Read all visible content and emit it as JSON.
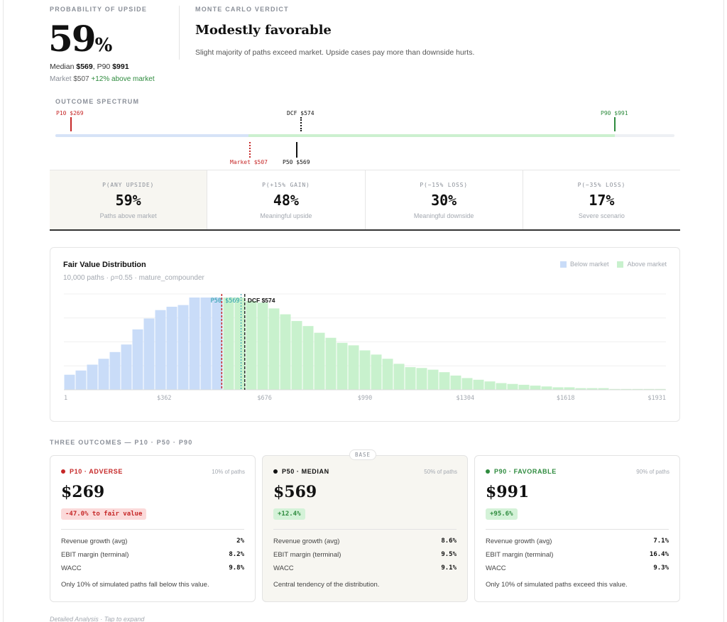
{
  "probability": {
    "eyebrow": "PROBABILITY OF UPSIDE",
    "value": "59",
    "unit": "%",
    "median_label": "Median",
    "median_value": "$569",
    "p90_label": "P90",
    "p90_value": "$991",
    "market_label": "Market",
    "market_value": "$507",
    "market_delta": "+12% above market"
  },
  "verdict": {
    "eyebrow": "MONTE CARLO VERDICT",
    "title": "Modestly favorable",
    "description": "Slight majority of paths exceed market. Upside cases pay more than downside hurts."
  },
  "spectrum": {
    "eyebrow": "OUTCOME SPECTRUM",
    "p10_label": "P10 $269",
    "dcf_label": "DCF $574",
    "p90_label": "P90 $991",
    "market_label": "Market $507",
    "p50_label": "P50 $569"
  },
  "stats": [
    {
      "label": "P(ANY UPSIDE)",
      "value": "59%",
      "sub": "Paths above market"
    },
    {
      "label": "P(+15% GAIN)",
      "value": "48%",
      "sub": "Meaningful upside"
    },
    {
      "label": "P(−15% LOSS)",
      "value": "30%",
      "sub": "Meaningful downside"
    },
    {
      "label": "P(−35% LOSS)",
      "value": "17%",
      "sub": "Severe scenario"
    }
  ],
  "chart": {
    "title": "Fair Value Distribution",
    "subtitle": "10,000 paths · ρ=0.55 · mature_compounder",
    "legend_below": "Below market",
    "legend_above": "Above market",
    "p50_marker": "P50 $569",
    "dcf_marker": "DCF $574"
  },
  "chart_data": {
    "type": "bar",
    "title": "Fair Value Distribution",
    "x_ticks": [
      "1",
      "$362",
      "$676",
      "$990",
      "$1304",
      "$1618",
      "$1931"
    ],
    "x_range": [
      1,
      1931
    ],
    "market_value": 507,
    "p50_value": 569,
    "dcf_value": 574,
    "bin_width": 36.4,
    "bin_start": 1,
    "values": [
      18,
      23,
      30,
      37,
      45,
      54,
      72,
      85,
      95,
      99,
      101,
      110,
      110,
      110,
      110,
      110,
      106,
      104,
      97,
      90,
      82,
      76,
      68,
      62,
      56,
      53,
      47,
      42,
      37,
      31,
      27,
      26,
      24,
      21,
      17,
      14,
      12,
      10,
      8,
      7,
      6,
      5,
      4,
      3,
      3,
      2,
      2,
      2,
      1,
      1,
      1,
      1,
      1
    ],
    "series": [
      {
        "name": "Below market",
        "color": "#c9dcf8"
      },
      {
        "name": "Above market",
        "color": "#c8f1cd"
      }
    ]
  },
  "outcomes": {
    "eyebrow": "THREE OUTCOMES — P10 · P50 · P90",
    "base_chip": "BASE",
    "cards": [
      {
        "tag": "P10 · ADVERSE",
        "share": "10% of paths",
        "price": "$269",
        "badge": "-47.0% to fair value",
        "rows": [
          {
            "label": "Revenue growth (avg)",
            "value": "2%"
          },
          {
            "label": "EBIT margin (terminal)",
            "value": "8.2%"
          },
          {
            "label": "WACC",
            "value": "9.8%"
          }
        ],
        "note": "Only 10% of simulated paths fall below this value."
      },
      {
        "tag": "P50 · MEDIAN",
        "share": "50% of paths",
        "price": "$569",
        "badge": "+12.4%",
        "rows": [
          {
            "label": "Revenue growth (avg)",
            "value": "8.6%"
          },
          {
            "label": "EBIT margin (terminal)",
            "value": "9.5%"
          },
          {
            "label": "WACC",
            "value": "9.1%"
          }
        ],
        "note": "Central tendency of the distribution."
      },
      {
        "tag": "P90 · FAVORABLE",
        "share": "90% of paths",
        "price": "$991",
        "badge": "+95.6%",
        "rows": [
          {
            "label": "Revenue growth (avg)",
            "value": "7.1%"
          },
          {
            "label": "EBIT margin (terminal)",
            "value": "16.4%"
          },
          {
            "label": "WACC",
            "value": "9.3%"
          }
        ],
        "note": "Only 10% of simulated paths exceed this value."
      }
    ]
  },
  "footer": {
    "detail_link": "Detailed Analysis · Tap to expand"
  },
  "colors": {
    "red": "#c62828",
    "green": "#2e8b3e",
    "below": "#c9dcf8",
    "above": "#c8f1cd"
  }
}
